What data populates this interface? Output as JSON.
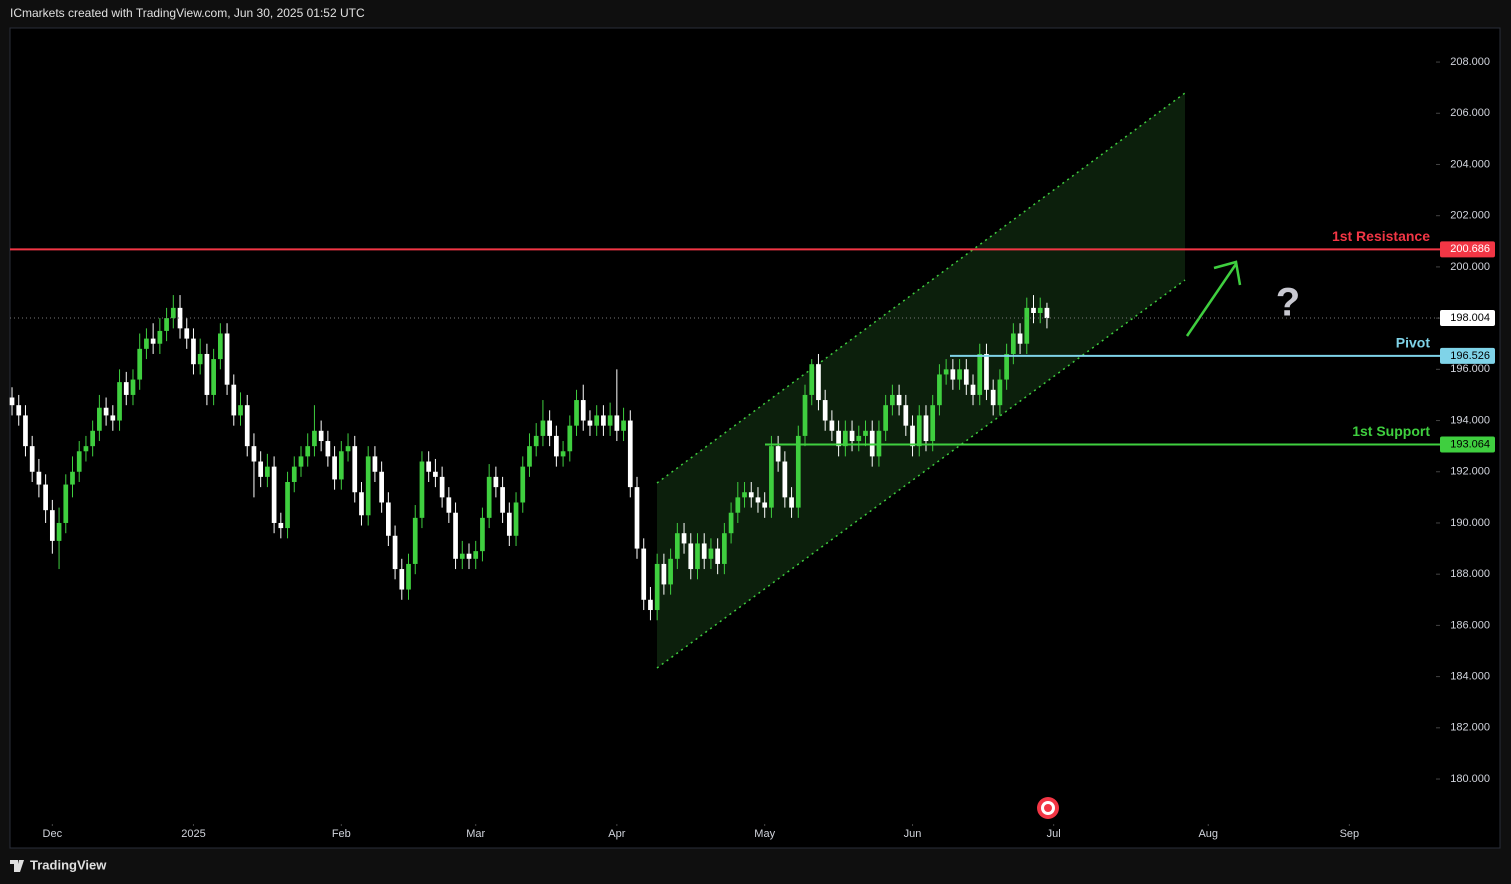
{
  "header": "ICmarkets created with TradingView.com, Jun 30, 2025 01:52 UTC",
  "footer": "TradingView",
  "chart_data": {
    "type": "candlestick",
    "up_color": "#3fcf3f",
    "down_color": "#ffffff",
    "open": [
      194.9,
      194.6,
      194.2,
      193.0,
      192.0,
      191.5,
      190.5,
      189.3,
      190.0,
      191.5,
      192.0,
      192.8,
      193.0,
      193.6,
      194.5,
      194.2,
      194.0,
      195.5,
      195.0,
      195.6,
      196.8,
      197.2,
      197.0,
      197.5,
      198.0,
      198.4,
      197.6,
      197.2,
      196.2,
      196.6,
      195.0,
      196.4,
      197.4,
      195.4,
      194.2,
      194.6,
      193.0,
      192.4,
      191.8,
      192.2,
      190.0,
      189.8,
      191.6,
      192.2,
      192.6,
      193.0,
      193.6,
      193.2,
      192.6,
      191.7,
      192.8,
      193.0,
      191.2,
      190.3,
      192.6,
      192.0,
      190.8,
      189.5,
      188.2,
      187.4,
      188.4,
      190.2,
      192.4,
      192.0,
      191.8,
      191.0,
      190.4,
      188.6,
      188.8,
      188.6,
      188.9,
      190.2,
      191.8,
      191.4,
      190.4,
      189.5,
      190.8,
      192.2,
      193.0,
      193.4,
      194.0,
      193.4,
      192.6,
      192.8,
      193.8,
      194.8,
      194.0,
      193.8,
      194.2,
      193.8,
      194.2,
      193.6,
      194.0,
      191.4,
      189.0,
      187.0,
      186.6,
      188.4,
      187.6,
      188.6,
      189.6,
      189.2,
      188.2,
      189.2,
      188.6,
      189.0,
      188.4,
      189.6,
      190.4,
      191.0,
      191.2,
      191.0,
      190.8,
      190.6,
      193.0,
      192.4,
      191.0,
      190.6,
      193.4,
      195.0,
      196.2,
      194.8,
      194.0,
      193.6,
      193.0,
      193.6,
      193.2,
      193.4,
      193.6,
      192.6,
      193.6,
      194.6,
      195.0,
      194.6,
      193.8,
      193.0,
      194.2,
      193.2,
      194.6,
      195.8,
      196.0,
      195.6,
      196.0,
      195.4,
      195.0,
      196.6,
      195.2,
      194.6,
      195.6,
      196.6,
      197.4,
      197.0,
      198.4,
      198.2,
      198.4
    ],
    "high": [
      195.3,
      195.0,
      194.6,
      193.4,
      192.5,
      191.9,
      190.9,
      190.6,
      191.9,
      192.6,
      193.2,
      193.4,
      194.0,
      195.0,
      194.9,
      194.6,
      196.0,
      195.9,
      196.0,
      197.4,
      197.6,
      197.8,
      198.0,
      198.4,
      198.9,
      198.9,
      198.0,
      197.6,
      197.2,
      197.0,
      196.8,
      197.8,
      197.8,
      195.8,
      195.1,
      195.0,
      193.5,
      192.8,
      192.7,
      192.6,
      190.4,
      192.0,
      192.6,
      193.0,
      193.5,
      194.6,
      194.0,
      193.6,
      193.0,
      193.2,
      193.5,
      193.4,
      191.6,
      193.0,
      193.0,
      192.4,
      191.2,
      189.9,
      188.6,
      188.8,
      190.7,
      192.8,
      192.8,
      192.5,
      192.2,
      191.4,
      190.8,
      189.3,
      189.2,
      189.3,
      190.6,
      192.3,
      192.2,
      191.8,
      190.8,
      191.2,
      192.6,
      193.5,
      193.9,
      194.8,
      194.4,
      193.8,
      193.2,
      194.2,
      195.2,
      195.4,
      194.4,
      194.6,
      194.6,
      194.7,
      196.0,
      194.5,
      194.4,
      191.8,
      189.4,
      187.5,
      188.8,
      188.8,
      189.0,
      190.0,
      190.0,
      189.6,
      189.6,
      189.6,
      189.4,
      189.4,
      190.0,
      190.8,
      191.6,
      191.6,
      191.6,
      191.4,
      191.2,
      193.4,
      193.4,
      192.8,
      191.4,
      193.8,
      195.4,
      196.4,
      196.6,
      195.2,
      194.4,
      194.0,
      194.0,
      194.0,
      193.8,
      194.0,
      194.0,
      194.0,
      195.0,
      195.4,
      195.4,
      195.0,
      194.2,
      194.6,
      194.6,
      195.0,
      196.2,
      196.4,
      196.4,
      196.4,
      196.4,
      195.8,
      197.0,
      197.0,
      195.6,
      196.0,
      197.0,
      197.8,
      197.8,
      198.8,
      198.9,
      198.8,
      198.6
    ],
    "low": [
      194.2,
      193.8,
      192.6,
      191.6,
      191.0,
      190.0,
      188.8,
      188.2,
      189.6,
      191.0,
      191.6,
      192.4,
      192.6,
      193.2,
      193.8,
      193.6,
      193.6,
      194.6,
      194.6,
      195.2,
      196.4,
      196.6,
      196.6,
      197.1,
      197.6,
      197.2,
      196.8,
      195.8,
      195.8,
      194.6,
      194.6,
      196.0,
      195.0,
      193.8,
      193.8,
      192.6,
      191.0,
      191.4,
      191.4,
      189.6,
      189.4,
      189.4,
      191.2,
      191.8,
      192.2,
      192.6,
      192.8,
      192.2,
      191.3,
      191.3,
      192.4,
      190.8,
      189.9,
      189.9,
      191.6,
      190.4,
      189.1,
      187.8,
      187.0,
      187.0,
      188.0,
      189.8,
      191.6,
      191.4,
      190.6,
      190.0,
      188.2,
      188.2,
      188.2,
      188.2,
      188.5,
      189.8,
      191.0,
      190.0,
      189.1,
      189.1,
      190.4,
      191.8,
      192.6,
      193.0,
      193.0,
      192.2,
      192.2,
      192.4,
      193.4,
      193.6,
      193.4,
      193.4,
      193.4,
      193.4,
      193.2,
      193.2,
      191.0,
      188.6,
      186.6,
      186.2,
      186.2,
      187.2,
      187.2,
      188.2,
      188.8,
      187.8,
      187.8,
      188.2,
      188.2,
      188.0,
      188.0,
      189.2,
      190.0,
      190.6,
      190.6,
      190.4,
      190.2,
      190.2,
      192.0,
      190.6,
      190.2,
      190.2,
      193.0,
      194.6,
      194.4,
      193.6,
      193.2,
      192.6,
      192.6,
      192.8,
      192.8,
      193.0,
      192.2,
      192.2,
      193.2,
      194.2,
      194.2,
      193.4,
      192.6,
      192.6,
      192.8,
      192.8,
      194.2,
      195.4,
      195.2,
      195.2,
      195.0,
      194.6,
      194.6,
      194.8,
      194.2,
      194.2,
      195.2,
      196.2,
      196.6,
      196.6,
      197.8,
      197.8,
      197.6
    ],
    "close": [
      194.6,
      194.2,
      193.0,
      192.0,
      191.5,
      190.5,
      189.3,
      190.0,
      191.5,
      192.0,
      192.8,
      193.0,
      193.6,
      194.5,
      194.2,
      194.0,
      195.5,
      195.0,
      195.6,
      196.8,
      197.2,
      197.0,
      197.5,
      198.0,
      198.4,
      197.6,
      197.2,
      196.2,
      196.6,
      195.0,
      196.4,
      197.4,
      195.4,
      194.2,
      194.6,
      193.0,
      192.4,
      191.8,
      192.2,
      190.0,
      189.8,
      191.6,
      192.2,
      192.6,
      193.0,
      193.6,
      193.2,
      192.6,
      191.7,
      192.8,
      193.0,
      191.2,
      190.3,
      192.6,
      192.0,
      190.8,
      189.5,
      188.2,
      187.4,
      188.4,
      190.2,
      192.4,
      192.0,
      191.8,
      191.0,
      190.4,
      188.6,
      188.8,
      188.6,
      188.9,
      190.2,
      191.8,
      191.4,
      190.4,
      189.5,
      190.8,
      192.2,
      193.0,
      193.4,
      194.0,
      193.4,
      192.6,
      192.8,
      193.8,
      194.8,
      194.0,
      193.8,
      194.2,
      193.8,
      194.2,
      193.6,
      194.0,
      191.4,
      189.0,
      187.0,
      186.6,
      188.4,
      187.6,
      188.6,
      189.6,
      189.2,
      188.2,
      189.2,
      188.6,
      189.0,
      188.4,
      189.6,
      190.4,
      191.0,
      191.2,
      191.0,
      190.8,
      190.6,
      193.0,
      192.4,
      191.0,
      190.6,
      193.4,
      195.0,
      196.2,
      194.8,
      194.0,
      193.6,
      193.0,
      193.6,
      193.2,
      193.4,
      193.6,
      192.6,
      193.6,
      194.6,
      195.0,
      194.6,
      193.8,
      193.0,
      194.2,
      193.2,
      194.6,
      195.8,
      196.0,
      195.6,
      196.0,
      195.4,
      195.0,
      196.6,
      195.2,
      194.6,
      195.6,
      196.6,
      197.4,
      197.0,
      198.4,
      198.2,
      198.4,
      198.0
    ],
    "last": 198.004,
    "levels": [
      {
        "name": "1st Resistance",
        "value": 200.686,
        "color": "#f23645"
      },
      {
        "name": "Pivot",
        "value": 196.526,
        "color": "#7fd3e8"
      },
      {
        "name": "1st Support",
        "value": 193.064,
        "color": "#3fcf3f"
      }
    ],
    "xlim": [
      -0.3,
      211
    ],
    "xticks": [
      {
        "value": 6,
        "label": "Dec"
      },
      {
        "value": 27,
        "label": "2025"
      },
      {
        "value": 49,
        "label": "Feb"
      },
      {
        "value": 69,
        "label": "Mar"
      },
      {
        "value": 90,
        "label": "Apr"
      },
      {
        "value": 112,
        "label": "May"
      },
      {
        "value": 134,
        "label": "Jun"
      },
      {
        "value": 155,
        "label": "Jul"
      },
      {
        "value": 178,
        "label": "Aug"
      },
      {
        "value": 199,
        "label": "Sep"
      }
    ],
    "ylim": [
      178.4,
      209.33
    ],
    "yticks": [
      {
        "value": 180,
        "label": "180.000"
      },
      {
        "value": 182,
        "label": "182.000"
      },
      {
        "value": 184,
        "label": "184.000"
      },
      {
        "value": 186,
        "label": "186.000"
      },
      {
        "value": 188,
        "label": "188.000"
      },
      {
        "value": 190,
        "label": "190.000"
      },
      {
        "value": 192,
        "label": "192.000"
      },
      {
        "value": 194,
        "label": "194.000"
      },
      {
        "value": 196,
        "label": "196.000"
      },
      {
        "value": 198,
        "label": "198.000"
      },
      {
        "value": 200,
        "label": "200.000"
      },
      {
        "value": 202,
        "label": "202.000"
      },
      {
        "value": 204,
        "label": "204.000"
      },
      {
        "value": 206,
        "label": "206.000"
      },
      {
        "value": 208,
        "label": "208.000"
      }
    ]
  }
}
